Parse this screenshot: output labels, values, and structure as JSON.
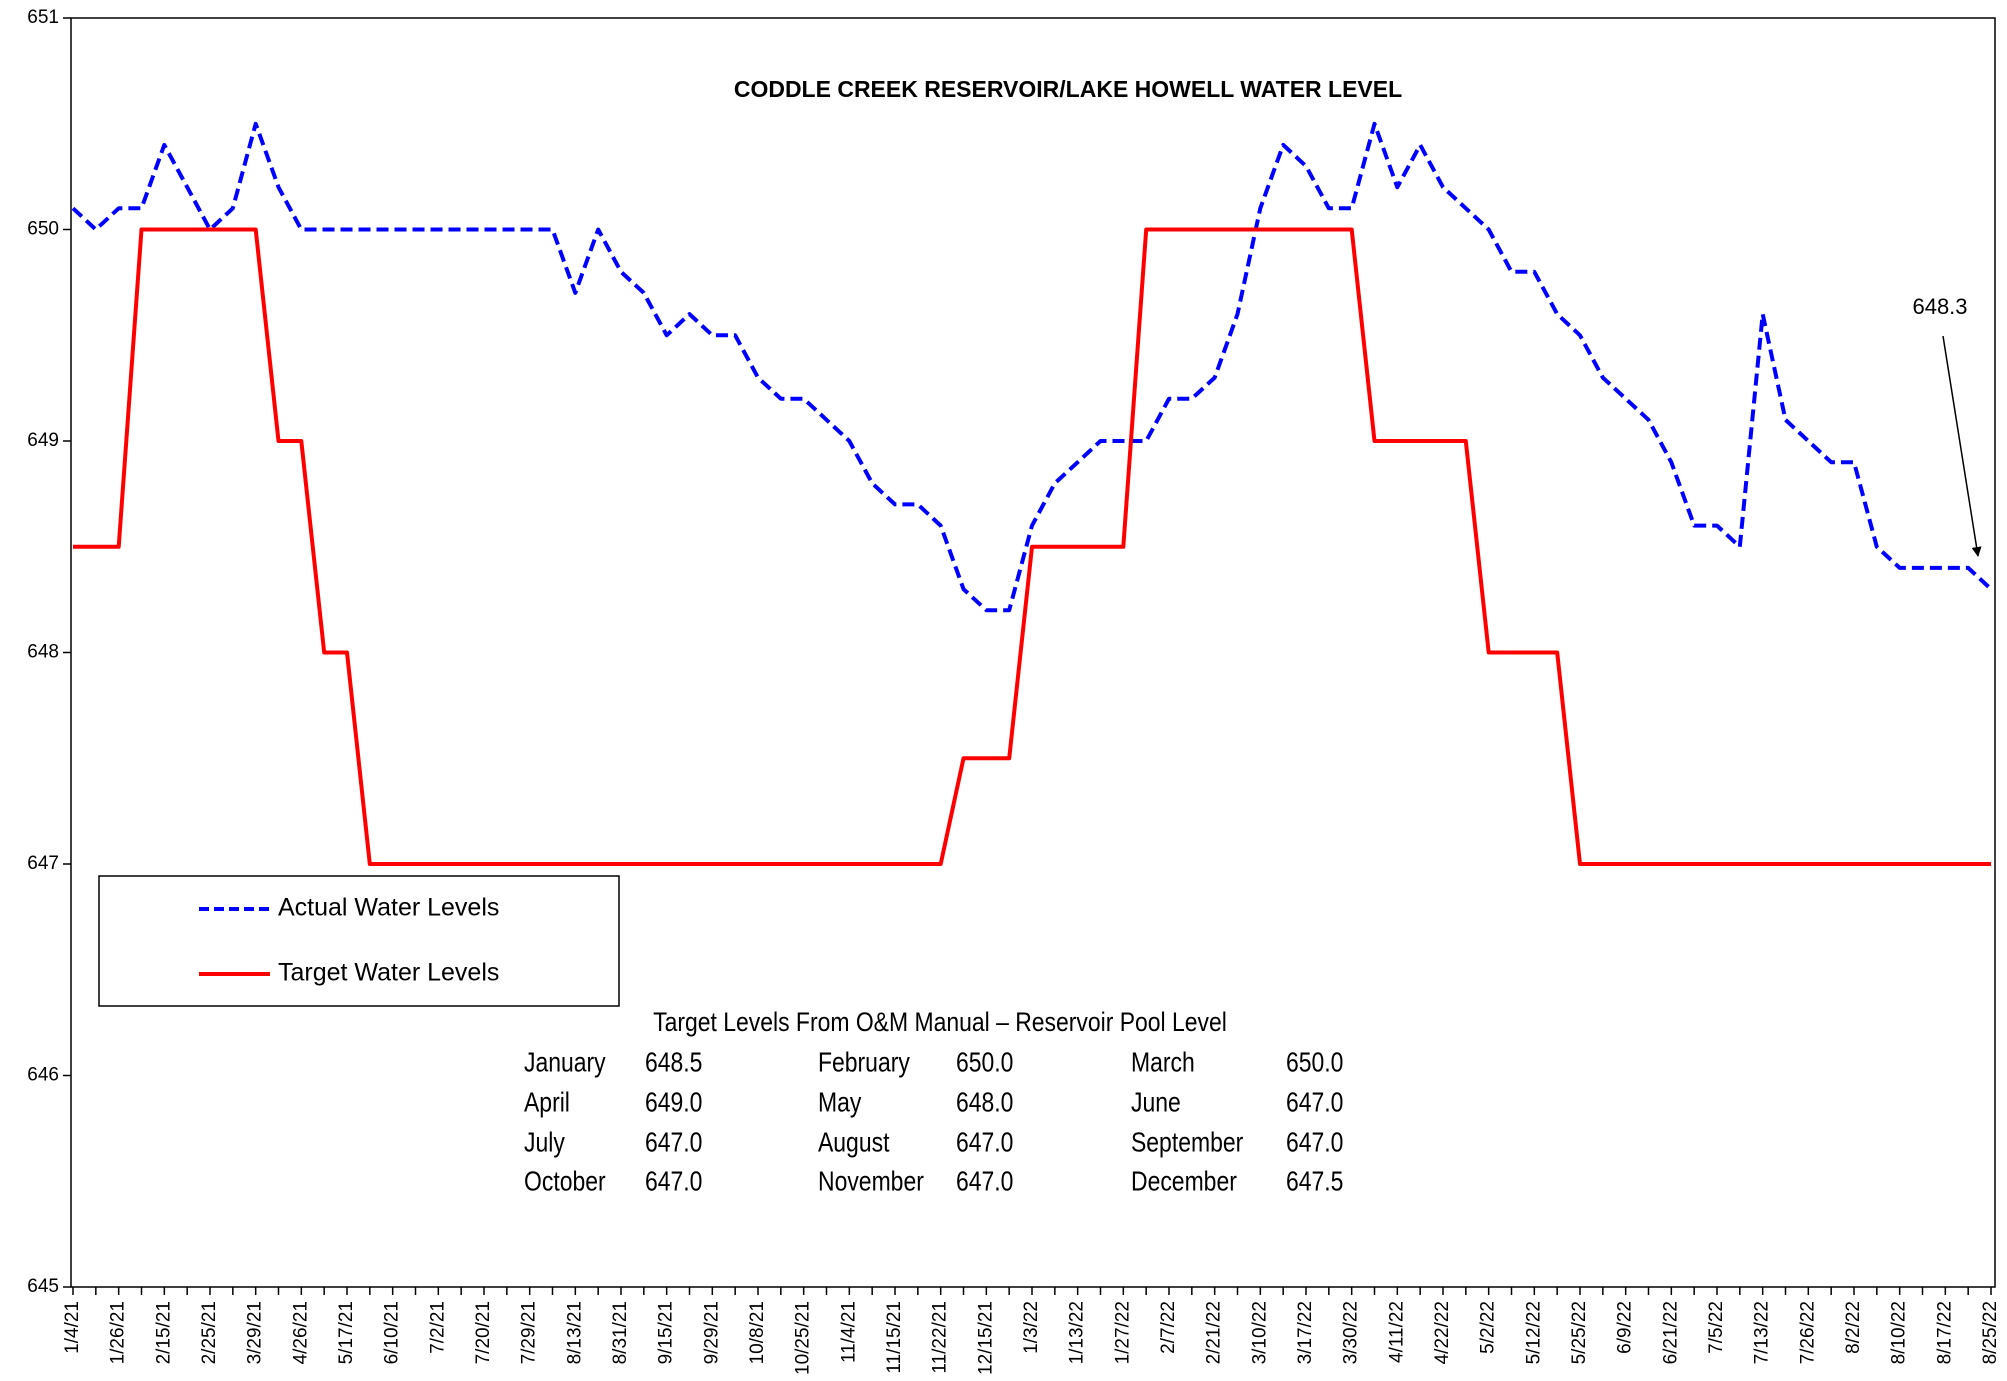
{
  "chart_data": {
    "type": "line",
    "title": "CODDLE CREEK RESERVOIR/LAKE HOWELL WATER LEVEL",
    "categories": [
      "1/4/21",
      null,
      "1/26/21",
      null,
      "2/15/21",
      null,
      "2/25/21",
      null,
      "3/29/21",
      null,
      "4/26/21",
      null,
      "5/17/21",
      null,
      "6/10/21",
      null,
      "7/2/21",
      null,
      "7/20/21",
      null,
      "7/29/21",
      null,
      "8/13/21",
      null,
      "8/31/21",
      null,
      "9/15/21",
      null,
      "9/29/21",
      null,
      "10/8/21",
      null,
      "10/25/21",
      null,
      "11/4/21",
      null,
      "11/15/21",
      null,
      "11/22/21",
      null,
      "12/15/21",
      null,
      "1/3/22",
      null,
      "1/13/22",
      null,
      "1/27/22",
      null,
      "2/7/22",
      null,
      "2/21/22",
      null,
      "3/10/22",
      null,
      "3/17/22",
      null,
      "3/30/22",
      null,
      "4/11/22",
      null,
      "4/22/22",
      null,
      "5/2/22",
      null,
      "5/12/22",
      null,
      "5/25/22",
      null,
      "6/9/22",
      null,
      "6/21/22",
      null,
      "7/5/22",
      null,
      "7/13/22",
      null,
      "7/26/22",
      null,
      "8/2/22",
      null,
      "8/10/22",
      null,
      "8/17/22",
      null,
      "8/25/22"
    ],
    "series": [
      {
        "name": "Actual Water Levels",
        "color": "#0000ff",
        "dashed": true,
        "values": [
          650.1,
          650.0,
          650.1,
          650.1,
          650.4,
          650.2,
          650.0,
          650.1,
          650.5,
          650.2,
          650.0,
          650.0,
          650.0,
          650.0,
          650.0,
          650.0,
          650.0,
          650.0,
          650.0,
          650.0,
          650.0,
          650.0,
          649.7,
          650.0,
          649.8,
          649.7,
          649.5,
          649.6,
          649.5,
          649.5,
          649.3,
          649.2,
          649.2,
          649.1,
          649.0,
          648.8,
          648.7,
          648.7,
          648.6,
          648.3,
          648.2,
          648.2,
          648.6,
          648.8,
          648.9,
          649.0,
          649.0,
          649.0,
          649.2,
          649.2,
          649.3,
          649.6,
          650.1,
          650.4,
          650.3,
          650.1,
          650.1,
          650.5,
          650.2,
          650.4,
          650.2,
          650.1,
          650.0,
          649.8,
          649.8,
          649.6,
          649.5,
          649.3,
          649.2,
          649.1,
          648.9,
          648.6,
          648.6,
          648.5,
          649.6,
          649.1,
          649.0,
          648.9,
          648.9,
          648.5,
          648.4,
          648.4,
          648.4,
          648.4,
          648.3
        ]
      },
      {
        "name": "Target Water Levels",
        "color": "#ff0000",
        "dashed": false,
        "values": [
          648.5,
          648.5,
          648.5,
          650,
          650,
          650,
          650,
          650,
          650,
          649,
          649,
          648,
          648,
          647,
          647,
          647,
          647,
          647,
          647,
          647,
          647,
          647,
          647,
          647,
          647,
          647,
          647,
          647,
          647,
          647,
          647,
          647,
          647,
          647,
          647,
          647,
          647,
          647,
          647,
          647.5,
          647.5,
          647.5,
          648.5,
          648.5,
          648.5,
          648.5,
          648.5,
          650,
          650,
          650,
          650,
          650,
          650,
          650,
          650,
          650,
          650,
          649,
          649,
          649,
          649,
          649,
          648,
          648,
          648,
          648,
          647,
          647,
          647,
          647,
          647,
          647,
          647,
          647,
          647,
          647,
          647,
          647,
          647,
          647,
          647,
          647,
          647,
          647,
          647
        ]
      }
    ],
    "ylim": [
      645,
      651
    ],
    "yticks": [
      645,
      646,
      647,
      648,
      649,
      650,
      651
    ],
    "grid": false,
    "legend": "left",
    "annotation": "648.3",
    "note": {
      "title": "Target Levels From O&M Manual – Reservoir Pool Level",
      "rows": [
        [
          "January",
          "648.5",
          "February",
          "650.0",
          "March",
          "650.0"
        ],
        [
          "April",
          "649.0",
          "May",
          "648.0",
          "June",
          "647.0"
        ],
        [
          "July",
          "647.0",
          "August",
          "647.0",
          "September",
          "647.0"
        ],
        [
          "October",
          "647.0",
          "November",
          "647.0",
          "December",
          "647.5"
        ]
      ]
    }
  }
}
